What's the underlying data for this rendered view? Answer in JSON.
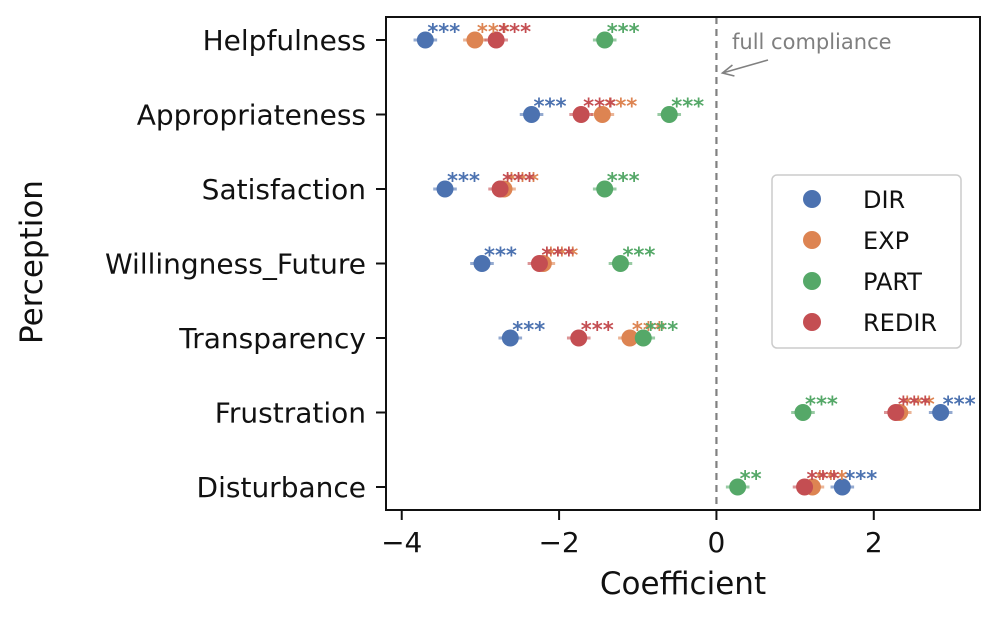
{
  "chart_data": {
    "type": "scatter",
    "title": "",
    "xlabel": "Coefficient",
    "ylabel": "Perception",
    "xlim": [
      -4.2,
      3.35
    ],
    "xticks": [
      -4,
      -2,
      0,
      2
    ],
    "xtick_labels": [
      "−4",
      "−2",
      "0",
      "2"
    ],
    "categories": [
      "Helpfulness",
      "Appropriateness",
      "Satisfaction",
      "Willingness_Future",
      "Transparency",
      "Frustration",
      "Disturbance"
    ],
    "reference_line": {
      "x": 0,
      "style": "dashed",
      "color": "#808080",
      "annotation": "full compliance"
    },
    "legend": {
      "position": "center-right",
      "entries": [
        "DIR",
        "EXP",
        "PART",
        "REDIR"
      ]
    },
    "series": [
      {
        "name": "DIR",
        "color": "#4c72b0",
        "values": [
          -3.7,
          -2.35,
          -3.45,
          -2.98,
          -2.62,
          2.85,
          1.6
        ],
        "ci_halfwidth": [
          0.15,
          0.15,
          0.15,
          0.15,
          0.15,
          0.15,
          0.15
        ],
        "sig": [
          "***",
          "***",
          "***",
          "***",
          "***",
          "***",
          "***"
        ]
      },
      {
        "name": "EXP",
        "color": "#dd8452",
        "values": [
          -3.07,
          -1.45,
          -2.7,
          -2.2,
          -1.1,
          2.33,
          1.22
        ],
        "ci_halfwidth": [
          0.15,
          0.15,
          0.15,
          0.15,
          0.15,
          0.15,
          0.15
        ],
        "sig": [
          "***",
          "***",
          "***",
          "***",
          "***",
          "***",
          "***"
        ]
      },
      {
        "name": "PART",
        "color": "#55a868",
        "values": [
          -1.42,
          -0.6,
          -1.42,
          -1.22,
          -0.93,
          1.1,
          0.27
        ],
        "ci_halfwidth": [
          0.15,
          0.15,
          0.15,
          0.15,
          0.15,
          0.15,
          0.15
        ],
        "sig": [
          "***",
          "***",
          "***",
          "***",
          "***",
          "***",
          "**"
        ]
      },
      {
        "name": "REDIR",
        "color": "#c44e52",
        "values": [
          -2.8,
          -1.72,
          -2.75,
          -2.25,
          -1.75,
          2.28,
          1.12
        ],
        "ci_halfwidth": [
          0.15,
          0.15,
          0.15,
          0.15,
          0.15,
          0.15,
          0.15
        ],
        "sig": [
          "***",
          "***",
          "***",
          "***",
          "***",
          "***",
          "***"
        ]
      }
    ]
  }
}
